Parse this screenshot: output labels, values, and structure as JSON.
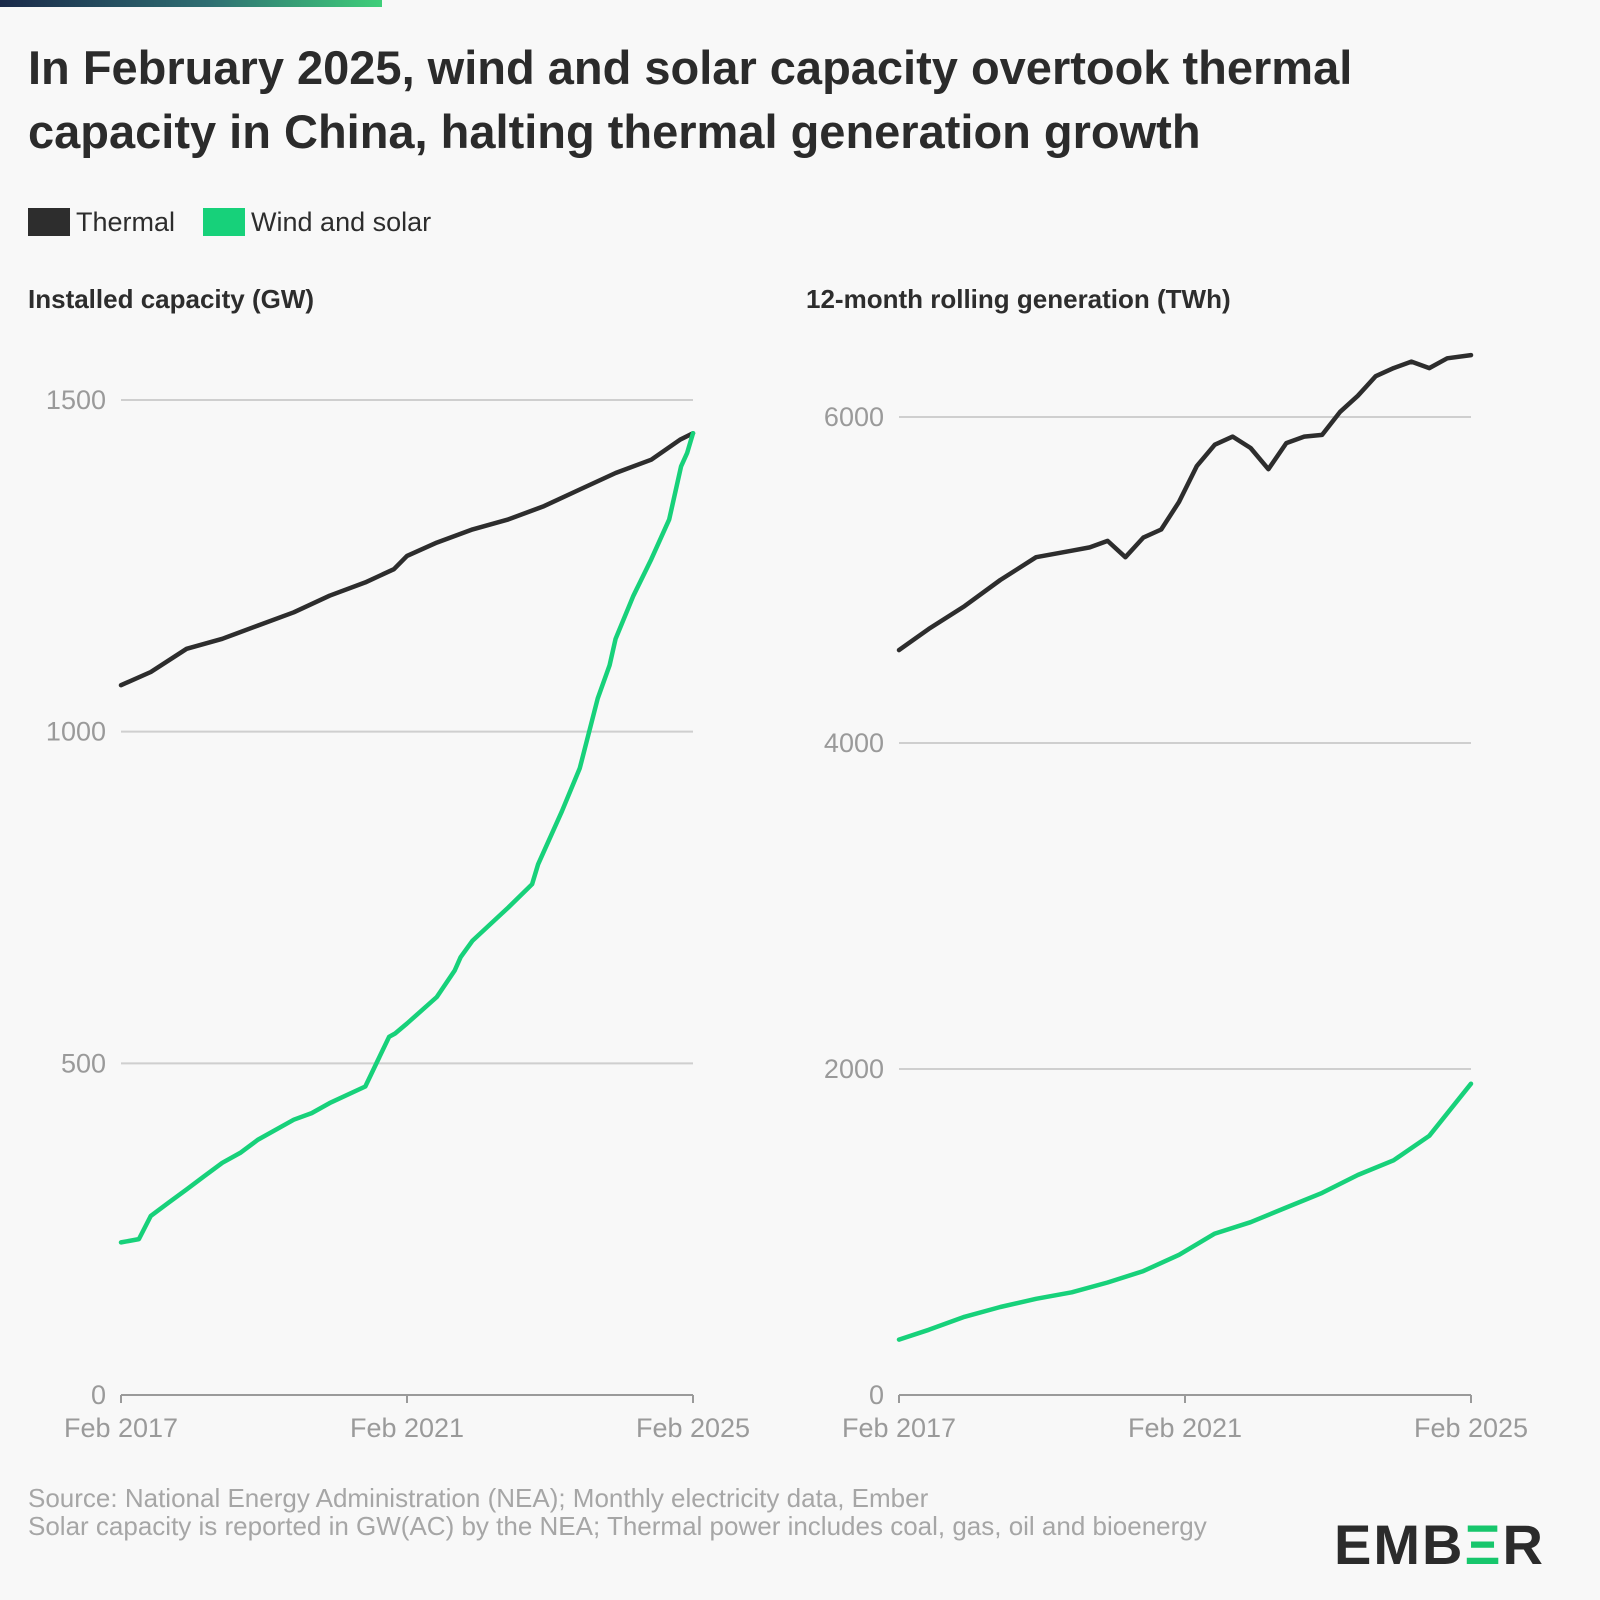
{
  "header": {
    "title": "In February 2025, wind and solar capacity overtook thermal capacity in China, halting thermal generation growth"
  },
  "legend": {
    "items": [
      {
        "label": "Thermal",
        "color": "#2d2d2d"
      },
      {
        "label": "Wind and solar",
        "color": "#17d17a"
      }
    ]
  },
  "chart_data": [
    {
      "type": "line",
      "title": "Installed capacity (GW)",
      "xlim": [
        2017.083,
        2025.083
      ],
      "ylim": [
        0,
        1500
      ],
      "y_ticks": [
        "0",
        "500",
        "1000",
        "1500"
      ],
      "y_tick_values": [
        0,
        500,
        1000,
        1500
      ],
      "x_ticks": [
        "Feb 2017",
        "Feb 2021",
        "Feb 2025"
      ],
      "x_tick_values": [
        2017.083,
        2021.083,
        2025.083
      ],
      "grid": true,
      "series": [
        {
          "name": "Thermal",
          "color": "#2d2d2d",
          "x": [
            2017.083,
            2017.5,
            2018.0,
            2018.5,
            2019.0,
            2019.5,
            2020.0,
            2020.5,
            2020.9,
            2021.083,
            2021.5,
            2022.0,
            2022.5,
            2023.0,
            2023.5,
            2024.0,
            2024.5,
            2024.9,
            2025.083
          ],
          "y": [
            1070,
            1090,
            1125,
            1140,
            1160,
            1180,
            1205,
            1225,
            1245,
            1265,
            1285,
            1305,
            1320,
            1340,
            1365,
            1390,
            1410,
            1440,
            1450
          ]
        },
        {
          "name": "Wind and solar",
          "color": "#17d17a",
          "x": [
            2017.083,
            2017.333,
            2017.5,
            2017.75,
            2018.0,
            2018.25,
            2018.5,
            2018.75,
            2019.0,
            2019.5,
            2019.75,
            2020.0,
            2020.5,
            2020.833,
            2020.917,
            2021.083,
            2021.5,
            2021.75,
            2021.833,
            2022.0,
            2022.5,
            2022.833,
            2022.917,
            2023.25,
            2023.5,
            2023.75,
            2023.917,
            2024.0,
            2024.25,
            2024.5,
            2024.75,
            2024.917,
            2025.0,
            2025.083
          ],
          "y": [
            230,
            235,
            270,
            290,
            310,
            330,
            350,
            365,
            385,
            415,
            425,
            440,
            465,
            540,
            545,
            560,
            600,
            640,
            660,
            685,
            735,
            770,
            800,
            880,
            945,
            1050,
            1100,
            1140,
            1205,
            1260,
            1320,
            1400,
            1420,
            1450
          ]
        }
      ]
    },
    {
      "type": "line",
      "title": "12-month rolling generation (TWh)",
      "xlim": [
        2017.083,
        2025.083
      ],
      "ylim": [
        0,
        6300
      ],
      "y_ticks": [
        "0",
        "2000",
        "4000",
        "6000"
      ],
      "y_tick_values": [
        0,
        2000,
        4000,
        6000
      ],
      "x_ticks": [
        "Feb 2017",
        "Feb 2021",
        "Feb 2025"
      ],
      "x_tick_values": [
        2017.083,
        2021.083,
        2025.083
      ],
      "grid": true,
      "series": [
        {
          "name": "Thermal",
          "color": "#2d2d2d",
          "x": [
            2017.083,
            2017.5,
            2018.0,
            2018.5,
            2019.0,
            2019.5,
            2019.75,
            2020.0,
            2020.25,
            2020.5,
            2020.75,
            2021.0,
            2021.25,
            2021.5,
            2021.75,
            2022.0,
            2022.25,
            2022.5,
            2022.75,
            2023.0,
            2023.25,
            2023.5,
            2023.75,
            2024.0,
            2024.25,
            2024.5,
            2024.75,
            2025.083
          ],
          "y": [
            4570,
            4700,
            4840,
            5000,
            5140,
            5180,
            5200,
            5240,
            5140,
            5260,
            5310,
            5480,
            5700,
            5830,
            5880,
            5810,
            5680,
            5840,
            5880,
            5890,
            6030,
            6130,
            6250,
            6300,
            6340,
            6300,
            6360,
            6380
          ]
        },
        {
          "name": "Wind and solar",
          "color": "#17d17a",
          "x": [
            2017.083,
            2017.5,
            2018.0,
            2018.5,
            2019.0,
            2019.5,
            2020.0,
            2020.5,
            2021.0,
            2021.5,
            2022.0,
            2022.5,
            2023.0,
            2023.5,
            2024.0,
            2024.5,
            2025.083
          ],
          "y": [
            340,
            400,
            480,
            540,
            590,
            630,
            690,
            760,
            860,
            990,
            1060,
            1150,
            1240,
            1350,
            1440,
            1590,
            1910
          ]
        }
      ]
    }
  ],
  "footer": {
    "source_line1": "Source: National Energy Administration (NEA); Monthly electricity data, Ember",
    "source_line2": "Solar capacity is reported in GW(AC) by the NEA; Thermal power includes coal, gas, oil and bioenergy"
  },
  "logo": {
    "text_before": "EMB",
    "accent": "Ξ",
    "text_after": "R"
  }
}
